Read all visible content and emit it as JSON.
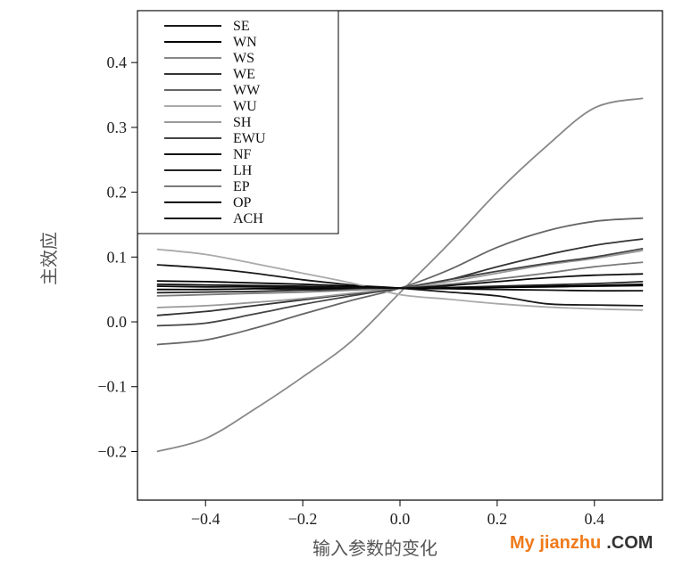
{
  "chart_data": {
    "type": "line",
    "title": "",
    "xlabel": "输入参数的变化",
    "ylabel": "主效应",
    "xlim": [
      -0.54,
      0.54
    ],
    "ylim": [
      -0.275,
      0.48
    ],
    "xticks": [
      -0.4,
      -0.2,
      0.0,
      0.2,
      0.4
    ],
    "yticks": [
      -0.2,
      -0.1,
      0.0,
      0.1,
      0.2,
      0.3,
      0.4
    ],
    "xtick_labels": [
      "−0.4",
      "−0.2",
      "0.0",
      "0.2",
      "0.4"
    ],
    "ytick_labels": [
      "−0.2",
      "−0.1",
      "0.0",
      "0.1",
      "0.2",
      "0.3",
      "0.4"
    ],
    "grid": false,
    "legend_position": "top-left",
    "x": [
      -0.5,
      -0.4,
      -0.3,
      -0.2,
      -0.1,
      0.0,
      0.1,
      0.2,
      0.3,
      0.4,
      0.5
    ],
    "series": [
      {
        "name": "SE",
        "color": "#1a1a1a",
        "values": [
          0.088,
          0.083,
          0.075,
          0.065,
          0.057,
          0.052,
          0.046,
          0.04,
          0.028,
          0.026,
          0.025
        ]
      },
      {
        "name": "WN",
        "color": "#000000",
        "values": [
          0.05,
          0.05,
          0.051,
          0.051,
          0.052,
          0.052,
          0.053,
          0.054,
          0.055,
          0.056,
          0.058
        ]
      },
      {
        "name": "WS",
        "color": "#888888",
        "values": [
          -0.2,
          -0.18,
          -0.135,
          -0.085,
          -0.03,
          0.045,
          0.12,
          0.2,
          0.27,
          0.33,
          0.345
        ]
      },
      {
        "name": "WE",
        "color": "#333333",
        "values": [
          0.01,
          0.016,
          0.025,
          0.034,
          0.043,
          0.052,
          0.065,
          0.085,
          0.103,
          0.118,
          0.128
        ]
      },
      {
        "name": "WW",
        "color": "#666666",
        "values": [
          -0.035,
          -0.028,
          -0.01,
          0.012,
          0.033,
          0.052,
          0.08,
          0.115,
          0.14,
          0.155,
          0.16
        ]
      },
      {
        "name": "WU",
        "color": "#aaaaaa",
        "values": [
          0.112,
          0.104,
          0.09,
          0.075,
          0.06,
          0.042,
          0.035,
          0.028,
          0.023,
          0.02,
          0.018
        ]
      },
      {
        "name": "SH",
        "color": "#999999",
        "values": [
          0.022,
          0.025,
          0.03,
          0.036,
          0.044,
          0.052,
          0.062,
          0.075,
          0.088,
          0.098,
          0.11
        ]
      },
      {
        "name": "EWU",
        "color": "#444444",
        "values": [
          -0.006,
          -0.002,
          0.012,
          0.027,
          0.04,
          0.052,
          0.065,
          0.078,
          0.09,
          0.1,
          0.113
        ]
      },
      {
        "name": "NF",
        "color": "#111111",
        "values": [
          0.058,
          0.057,
          0.056,
          0.055,
          0.053,
          0.052,
          0.051,
          0.05,
          0.049,
          0.048,
          0.048
        ]
      },
      {
        "name": "LH",
        "color": "#222222",
        "values": [
          0.045,
          0.046,
          0.047,
          0.049,
          0.05,
          0.052,
          0.053,
          0.055,
          0.057,
          0.059,
          0.062
        ]
      },
      {
        "name": "EP",
        "color": "#7a7a7a",
        "values": [
          0.04,
          0.042,
          0.044,
          0.046,
          0.049,
          0.052,
          0.058,
          0.066,
          0.075,
          0.085,
          0.092
        ]
      },
      {
        "name": "OP",
        "color": "#000000",
        "values": [
          0.063,
          0.062,
          0.06,
          0.058,
          0.055,
          0.052,
          0.052,
          0.053,
          0.054,
          0.055,
          0.056
        ]
      },
      {
        "name": "ACH",
        "color": "#0d0d0d",
        "values": [
          0.055,
          0.054,
          0.054,
          0.053,
          0.053,
          0.052,
          0.056,
          0.062,
          0.068,
          0.072,
          0.074
        ]
      }
    ]
  },
  "watermark": {
    "brand": "My jianzhu",
    "suffix": ".COM"
  }
}
